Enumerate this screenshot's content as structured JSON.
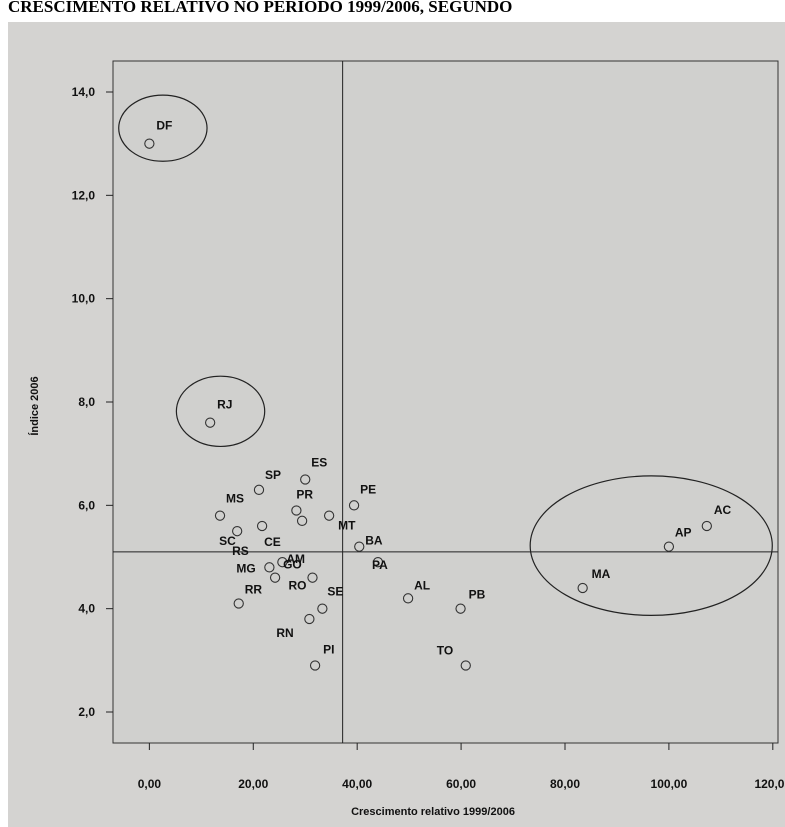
{
  "page_title": "CRESCIMENTO RELATIVO NO PERÍODO 1999/2006, SEGUNDO",
  "colors": {
    "outer_panel": "#d4d3d1",
    "plot_panel": "#d0d0ce",
    "point_edge": "#333333",
    "line": "#222222"
  },
  "chart_data": {
    "type": "scatter",
    "xlabel": "Crescimento relativo 1999/2006",
    "ylabel": "Índice 2006",
    "xlim": [
      -7,
      121
    ],
    "ylim": [
      1.4,
      14.6
    ],
    "x_ticks": [
      {
        "value": 0,
        "label": "0,00"
      },
      {
        "value": 20,
        "label": "20,00"
      },
      {
        "value": 40,
        "label": "40,00"
      },
      {
        "value": 60,
        "label": "60,00"
      },
      {
        "value": 80,
        "label": "80,00"
      },
      {
        "value": 100,
        "label": "100,00"
      },
      {
        "value": 120,
        "label": "120,00"
      }
    ],
    "y_ticks": [
      {
        "value": 2,
        "label": "2,0"
      },
      {
        "value": 4,
        "label": "4,0"
      },
      {
        "value": 6,
        "label": "6,0"
      },
      {
        "value": 8,
        "label": "8,0"
      },
      {
        "value": 10,
        "label": "10,0"
      },
      {
        "value": 12,
        "label": "12,0"
      },
      {
        "value": 14,
        "label": "14,0"
      }
    ],
    "reference_lines": {
      "x": 37.2,
      "y": 5.1
    },
    "points": [
      {
        "label": "DF",
        "x": 0.0,
        "y": 13.0
      },
      {
        "label": "RJ",
        "x": 11.7,
        "y": 7.6
      },
      {
        "label": "SP",
        "x": 21.1,
        "y": 6.3
      },
      {
        "label": "ES",
        "x": 30.0,
        "y": 6.5
      },
      {
        "label": "MS",
        "x": 13.6,
        "y": 5.8
      },
      {
        "label": "PR",
        "x": 28.3,
        "y": 5.9
      },
      {
        "label": "PE",
        "x": 39.4,
        "y": 6.0
      },
      {
        "label": "SC",
        "x": 16.9,
        "y": 5.5
      },
      {
        "label": "CE",
        "x": 21.7,
        "y": 5.6
      },
      {
        "label": "MT",
        "x": 34.6,
        "y": 5.8
      },
      {
        "label": "RS",
        "x": 29.4,
        "y": 5.7
      },
      {
        "label": "BA",
        "x": 40.4,
        "y": 5.2
      },
      {
        "label": "MG",
        "x": 23.1,
        "y": 4.8
      },
      {
        "label": "AM",
        "x": 25.6,
        "y": 4.9
      },
      {
        "label": "GO",
        "x": 24.2,
        "y": 4.6
      },
      {
        "label": "PA",
        "x": 44.0,
        "y": 4.9
      },
      {
        "label": "RR",
        "x": 17.2,
        "y": 4.1
      },
      {
        "label": "RO",
        "x": 31.4,
        "y": 4.6
      },
      {
        "label": "SE",
        "x": 33.3,
        "y": 4.0
      },
      {
        "label": "AL",
        "x": 49.8,
        "y": 4.2
      },
      {
        "label": "PB",
        "x": 59.9,
        "y": 4.0
      },
      {
        "label": "RN",
        "x": 30.8,
        "y": 3.8
      },
      {
        "label": "PI",
        "x": 31.9,
        "y": 2.9
      },
      {
        "label": "TO",
        "x": 60.9,
        "y": 2.9
      },
      {
        "label": "MA",
        "x": 83.4,
        "y": 4.4
      },
      {
        "label": "AP",
        "x": 100.0,
        "y": 5.2
      },
      {
        "label": "AC",
        "x": 107.3,
        "y": 5.6
      }
    ],
    "highlight_ellipses": [
      {
        "name": "DF",
        "cx": 2.6,
        "cy": 13.3,
        "rx": 8.5,
        "ry": 0.64
      },
      {
        "name": "RJ",
        "cx": 13.7,
        "cy": 7.82,
        "rx": 8.5,
        "ry": 0.68
      },
      {
        "name": "AP-AC-MA",
        "cx": 96.6,
        "cy": 5.22,
        "rx": 23.3,
        "ry": 1.35
      }
    ]
  }
}
